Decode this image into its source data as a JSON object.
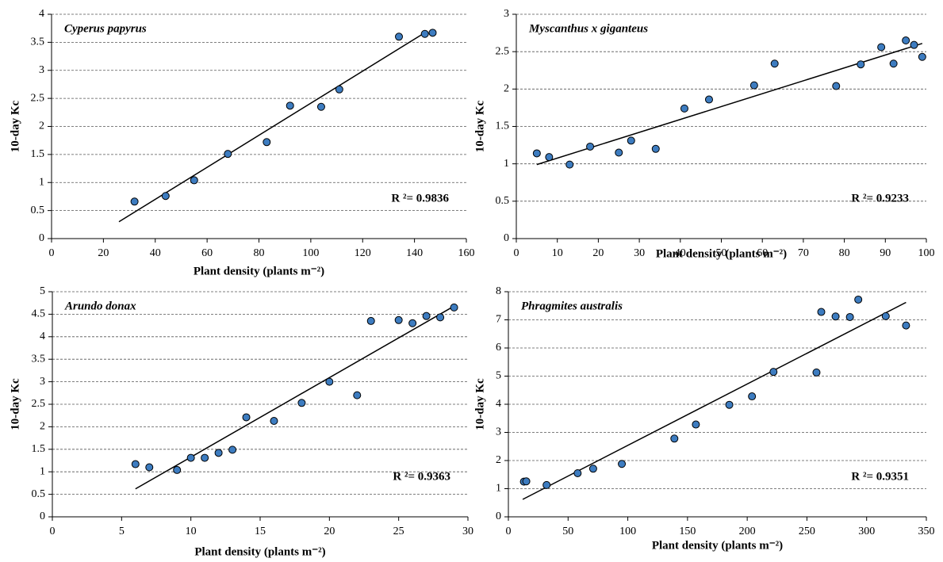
{
  "chart_data": [
    {
      "type": "scatter",
      "title": "Cyperus papyrus",
      "x_label": "Plant density (plants m⁻²)",
      "y_label": "10-day Kc",
      "annotation": "R ²= 0.9836",
      "color": "#3d7cc0",
      "grid": true,
      "x": [
        32,
        44,
        55,
        68,
        83,
        92,
        104,
        111,
        134,
        144,
        147
      ],
      "values": [
        0.66,
        0.76,
        1.04,
        1.51,
        1.72,
        2.37,
        2.35,
        2.66,
        3.6,
        3.65,
        3.67
      ],
      "trendline": {
        "x": [
          26,
          145
        ],
        "y": [
          0.3,
          3.7
        ]
      },
      "xlim": [
        0,
        160
      ],
      "xticks": [
        0,
        20,
        40,
        60,
        80,
        100,
        120,
        140,
        160
      ],
      "ylim": [
        0,
        4
      ],
      "yticks": [
        0,
        0.5,
        1,
        1.5,
        2,
        2.5,
        3,
        3.5,
        4
      ]
    },
    {
      "type": "scatter",
      "title": "Myscanthus x giganteus",
      "x_label": "Plant density (plants m⁻²)",
      "y_label": "10-day Kc",
      "annotation": "R ²= 0.9233",
      "color": "#3d7cc0",
      "grid": true,
      "x": [
        5,
        8,
        13,
        18,
        25,
        28,
        34,
        41,
        47,
        58,
        63,
        78,
        84,
        89,
        92,
        95,
        97,
        99
      ],
      "values": [
        1.14,
        1.09,
        0.99,
        1.23,
        1.15,
        1.31,
        1.2,
        1.74,
        1.86,
        2.05,
        2.34,
        2.04,
        2.33,
        2.56,
        2.34,
        2.65,
        2.59,
        2.43
      ],
      "trendline": {
        "x": [
          5,
          99
        ],
        "y": [
          0.99,
          2.61
        ]
      },
      "xlim": [
        0,
        100
      ],
      "xticks": [
        0,
        10,
        20,
        30,
        40,
        50,
        60,
        70,
        80,
        90,
        100
      ],
      "ylim": [
        0,
        3
      ],
      "yticks": [
        0,
        0.5,
        1,
        1.5,
        2,
        2.5,
        3
      ]
    },
    {
      "type": "scatter",
      "title": "Arundo donax",
      "x_label": "Plant density (plants m⁻²)",
      "y_label": "10-day Kc",
      "annotation": "R ²= 0.9363",
      "color": "#3d7cc0",
      "grid": true,
      "x": [
        6,
        7,
        9,
        10,
        11,
        12,
        13,
        14,
        16,
        18,
        20,
        22,
        23,
        25,
        26,
        27,
        28,
        29
      ],
      "values": [
        1.17,
        1.1,
        1.04,
        1.31,
        1.31,
        1.42,
        1.49,
        2.21,
        2.13,
        2.53,
        3.0,
        2.7,
        4.35,
        4.37,
        4.3,
        4.46,
        4.43,
        4.65
      ],
      "trendline": {
        "x": [
          6,
          29
        ],
        "y": [
          0.62,
          4.68
        ]
      },
      "xlim": [
        0,
        30
      ],
      "xticks": [
        0,
        5,
        10,
        15,
        20,
        25,
        30
      ],
      "ylim": [
        0,
        5
      ],
      "yticks": [
        0,
        0.5,
        1,
        1.5,
        2,
        2.5,
        3,
        3.5,
        4,
        4.5,
        5
      ]
    },
    {
      "type": "scatter",
      "title": "Phragmites australis",
      "x_label": "Plant density (plants m⁻²)",
      "y_label": "10-day Kc",
      "annotation": "R ²= 0.9351",
      "color": "#3d7cc0",
      "grid": true,
      "x": [
        13,
        15,
        32,
        58,
        71,
        95,
        139,
        157,
        185,
        204,
        222,
        258,
        262,
        274,
        286,
        293,
        316,
        333
      ],
      "values": [
        1.25,
        1.26,
        1.13,
        1.55,
        1.71,
        1.88,
        2.78,
        3.28,
        3.98,
        4.28,
        5.15,
        5.13,
        7.28,
        7.12,
        7.1,
        7.72,
        7.13,
        6.8
      ],
      "trendline": {
        "x": [
          12,
          333
        ],
        "y": [
          0.62,
          7.62
        ]
      },
      "xlim": [
        0,
        350
      ],
      "xticks": [
        0,
        50,
        100,
        150,
        200,
        250,
        300,
        350
      ],
      "ylim": [
        0,
        8
      ],
      "yticks": [
        0,
        1,
        2,
        3,
        4,
        5,
        6,
        7,
        8
      ]
    }
  ]
}
